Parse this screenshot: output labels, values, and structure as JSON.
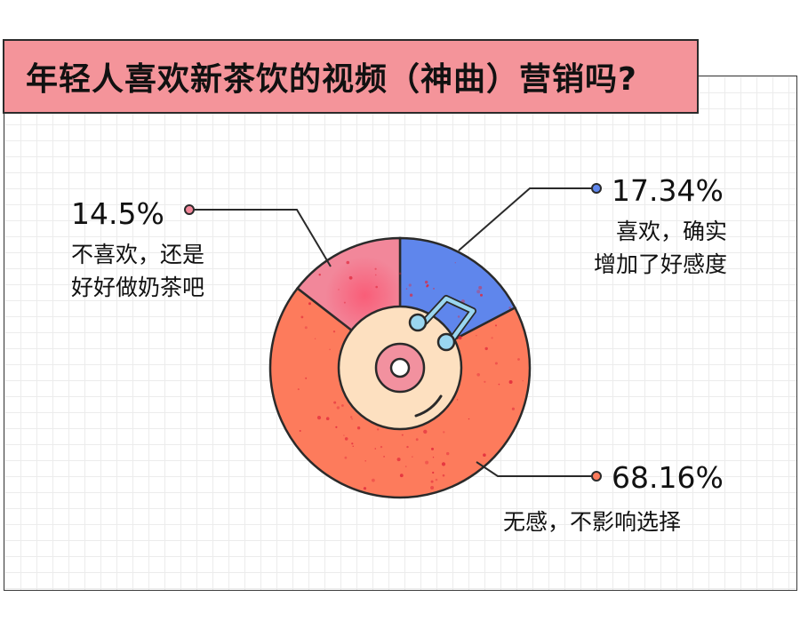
{
  "title": "年轻人喜欢新茶饮的视频（神曲）营销吗?",
  "colors": {
    "title_bg": "#f4949a",
    "like": "#5f86ec",
    "neutral": "#fd7b5c",
    "dislike": "#f2879a",
    "inner_disc": "#fde0c0",
    "center_pink": "#f2919f",
    "note": "#9ad6f0"
  },
  "chart_data": {
    "type": "pie",
    "title": "年轻人喜欢新茶饮的视频（神曲）营销吗?",
    "series": [
      {
        "value": 17.34,
        "label": "17.34%",
        "text": [
          "喜欢，确实",
          "增加了好感度"
        ],
        "color": "#5f86ec"
      },
      {
        "value": 68.16,
        "label": "68.16%",
        "text": [
          "无感，不影响选择"
        ],
        "color": "#fd7b5c"
      },
      {
        "value": 14.5,
        "label": "14.5%",
        "text": [
          "不喜欢，还是",
          "好好做奶茶吧"
        ],
        "color": "#f2879a"
      }
    ]
  }
}
